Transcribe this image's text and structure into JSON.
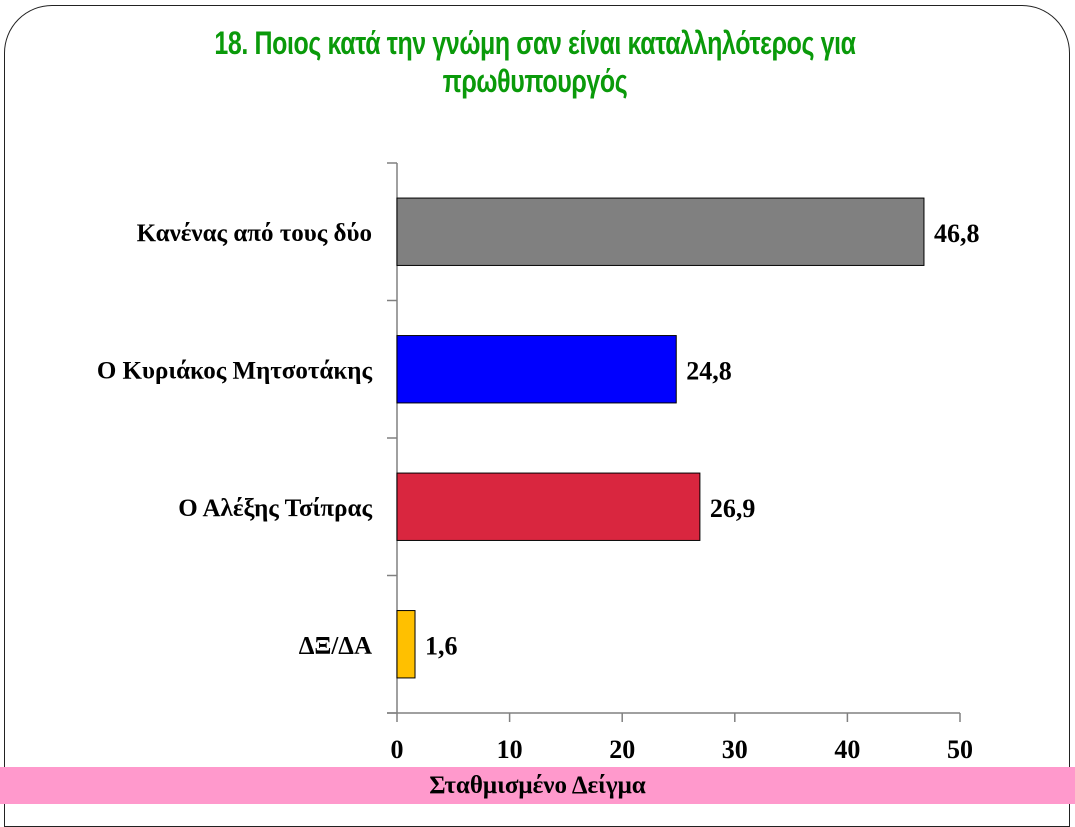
{
  "chart_data": {
    "type": "bar",
    "orientation": "horizontal",
    "title": "18. Ποιος κατά την γνώμη σαν είναι καταλληλότερος για πρωθυπουργός",
    "categories": [
      "Κανένας από τους δύο",
      "Ο Κυριάκος Μητσοτάκης",
      "Ο Αλέξης Τσίπρας",
      "ΔΞ/ΔΑ"
    ],
    "values": [
      46.8,
      24.8,
      26.9,
      1.6
    ],
    "data_labels": [
      "46,8",
      "24,8",
      "26,9",
      "1,6"
    ],
    "colors": [
      "#808080",
      "#0000ff",
      "#d9263f",
      "#ffc000"
    ],
    "xlim": [
      0,
      50
    ],
    "xticks": [
      0,
      10,
      20,
      30,
      40,
      50
    ],
    "grid": false,
    "legend": "none"
  },
  "footer": "Σταθμισμένο Δείγμα"
}
